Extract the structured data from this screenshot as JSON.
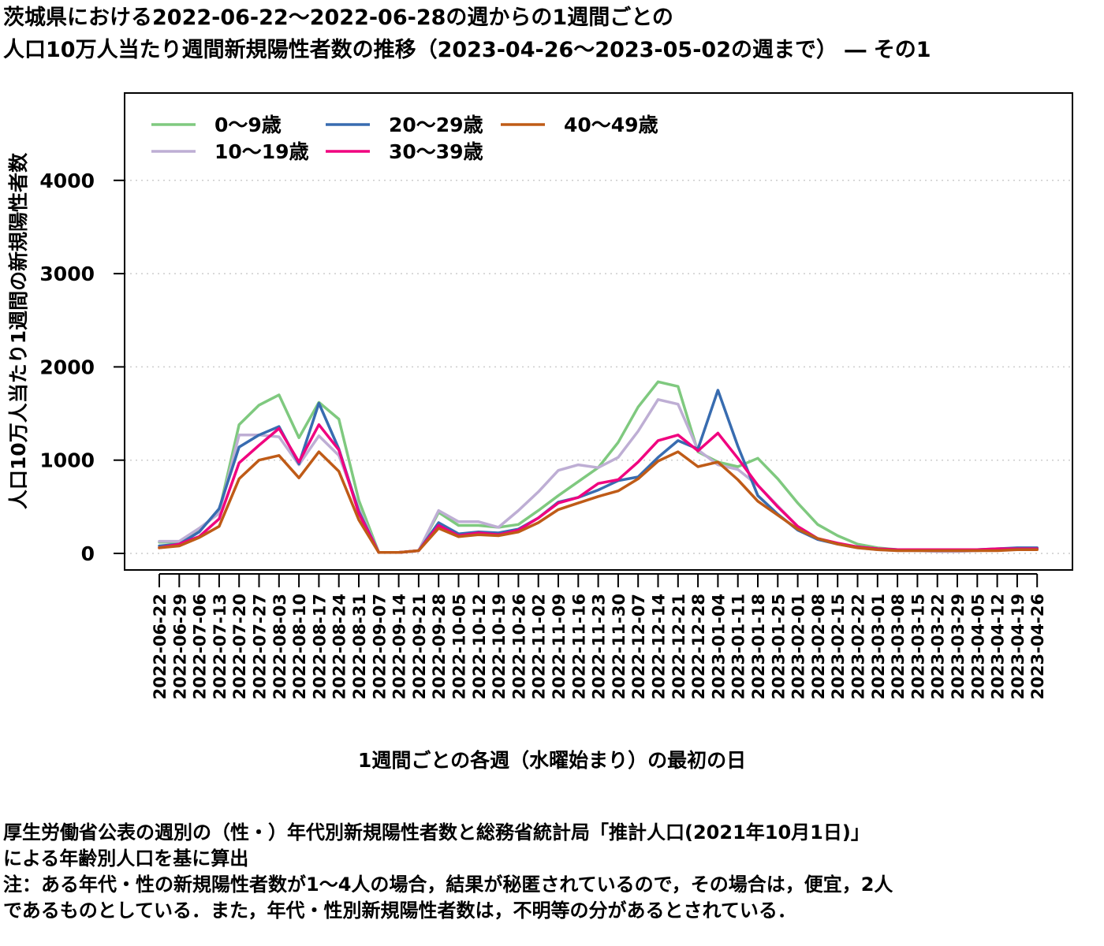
{
  "title": {
    "line1": "茨城県における2022-06-22～2022-06-28の週からの1週間ごとの",
    "line2": "人口10万人当たり週間新規陽性者数の推移（2023-04-26～2023-05-02の週まで） ― その1"
  },
  "notes": {
    "line1": "厚生労働省公表の週別の（性・）年代別新規陽性者数と総務省統計局「推計人口(2021年10月1日)」",
    "line2": "による年齢別人口を基に算出",
    "line3": "注：ある年代・性の新規陽性者数が1～4人の場合，結果が秘匿されているので，その場合は，便宜，2人",
    "line4": "であるものとしている．また，年代・性別新規陽性者数は，不明等の分があるとされている．"
  },
  "chart_data": {
    "type": "line",
    "title": "",
    "xlabel": "1週間ごとの各週（水曜始まり）の最初の日",
    "ylabel": "人口10万人当たり1週間の新規陽性者数",
    "ylim": [
      -200,
      4930
    ],
    "yticks": [
      0,
      1000,
      2000,
      3000,
      4000
    ],
    "grid": "horizontal dotted",
    "legend": "top-left",
    "categories": [
      "2022-06-22",
      "2022-06-29",
      "2022-07-06",
      "2022-07-13",
      "2022-07-20",
      "2022-07-27",
      "2022-08-03",
      "2022-08-10",
      "2022-08-17",
      "2022-08-24",
      "2022-08-31",
      "2022-09-07",
      "2022-09-14",
      "2022-09-21",
      "2022-09-28",
      "2022-10-05",
      "2022-10-12",
      "2022-10-19",
      "2022-10-26",
      "2022-11-02",
      "2022-11-09",
      "2022-11-16",
      "2022-11-23",
      "2022-11-30",
      "2022-12-07",
      "2022-12-14",
      "2022-12-21",
      "2022-12-28",
      "2023-01-04",
      "2023-01-11",
      "2023-01-18",
      "2023-01-25",
      "2023-02-01",
      "2023-02-08",
      "2023-02-15",
      "2023-02-22",
      "2023-03-01",
      "2023-03-08",
      "2023-03-15",
      "2023-03-22",
      "2023-03-29",
      "2023-04-05",
      "2023-04-12",
      "2023-04-19",
      "2023-04-26"
    ],
    "series": [
      {
        "name": "0～9歳",
        "color": "#7fc97f",
        "values": [
          120,
          120,
          250,
          450,
          1380,
          1590,
          1700,
          1240,
          1620,
          1440,
          570,
          10,
          10,
          30,
          440,
          300,
          300,
          280,
          310,
          460,
          620,
          770,
          920,
          1190,
          1570,
          1840,
          1790,
          1090,
          980,
          930,
          1020,
          800,
          540,
          310,
          190,
          100,
          60,
          40,
          30,
          30,
          30,
          30,
          40,
          50,
          50
        ]
      },
      {
        "name": "10～19歳",
        "color": "#beaed4",
        "values": [
          130,
          130,
          270,
          430,
          1270,
          1270,
          1250,
          950,
          1260,
          1050,
          480,
          10,
          10,
          30,
          460,
          340,
          340,
          280,
          460,
          660,
          890,
          950,
          920,
          1030,
          1310,
          1650,
          1600,
          1110,
          950,
          900,
          730,
          510,
          290,
          160,
          100,
          60,
          40,
          30,
          30,
          20,
          20,
          30,
          40,
          50,
          50
        ]
      },
      {
        "name": "20～29歳",
        "color": "#386cb0",
        "values": [
          80,
          100,
          230,
          480,
          1140,
          1270,
          1360,
          960,
          1610,
          1120,
          450,
          10,
          10,
          30,
          330,
          210,
          230,
          220,
          260,
          380,
          550,
          600,
          680,
          780,
          820,
          1030,
          1210,
          1120,
          1750,
          1150,
          620,
          420,
          250,
          150,
          100,
          70,
          50,
          40,
          40,
          40,
          40,
          40,
          50,
          60,
          60
        ]
      },
      {
        "name": "30～39歳",
        "color": "#f0027f",
        "values": [
          60,
          100,
          180,
          370,
          970,
          1160,
          1340,
          980,
          1380,
          1110,
          430,
          10,
          10,
          30,
          300,
          190,
          220,
          200,
          250,
          380,
          540,
          600,
          750,
          790,
          980,
          1210,
          1270,
          1100,
          1290,
          1020,
          730,
          500,
          290,
          160,
          110,
          70,
          50,
          40,
          40,
          40,
          40,
          40,
          50,
          50,
          50
        ]
      },
      {
        "name": "40～49歳",
        "color": "#bf5b17",
        "values": [
          60,
          80,
          170,
          290,
          800,
          1000,
          1050,
          810,
          1090,
          880,
          360,
          10,
          10,
          30,
          270,
          180,
          200,
          190,
          230,
          330,
          470,
          540,
          610,
          670,
          800,
          990,
          1090,
          930,
          980,
          790,
          560,
          410,
          260,
          160,
          100,
          60,
          40,
          30,
          30,
          30,
          30,
          30,
          30,
          40,
          40
        ]
      }
    ]
  }
}
